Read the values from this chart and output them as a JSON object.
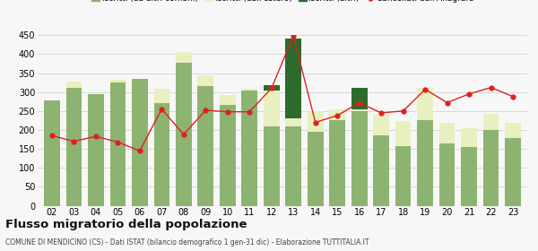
{
  "years": [
    "02",
    "03",
    "04",
    "05",
    "06",
    "07",
    "08",
    "09",
    "10",
    "11",
    "12",
    "13",
    "14",
    "15",
    "16",
    "17",
    "18",
    "19",
    "20",
    "21",
    "22",
    "23"
  ],
  "iscritti_comuni": [
    278,
    310,
    295,
    325,
    335,
    270,
    378,
    315,
    265,
    303,
    210,
    210,
    195,
    225,
    250,
    185,
    158,
    225,
    165,
    155,
    200,
    178
  ],
  "iscritti_estero": [
    0,
    18,
    0,
    8,
    0,
    38,
    28,
    28,
    28,
    5,
    95,
    20,
    55,
    30,
    5,
    55,
    65,
    85,
    55,
    50,
    42,
    40
  ],
  "iscritti_altri": [
    0,
    0,
    0,
    0,
    0,
    0,
    0,
    0,
    0,
    0,
    14,
    210,
    0,
    0,
    55,
    0,
    0,
    0,
    0,
    0,
    0,
    0
  ],
  "cancellati": [
    185,
    170,
    183,
    168,
    145,
    255,
    188,
    252,
    248,
    248,
    310,
    448,
    220,
    238,
    272,
    245,
    250,
    307,
    272,
    295,
    312,
    288
  ],
  "color_comuni": "#8db370",
  "color_estero": "#e8f0c0",
  "color_altri": "#2d6b2d",
  "color_cancellati": "#e02020",
  "ylim": [
    0,
    450
  ],
  "yticks": [
    0,
    50,
    100,
    150,
    200,
    250,
    300,
    350,
    400,
    450
  ],
  "title": "Flusso migratorio della popolazione",
  "subtitle": "COMUNE DI MENDICINO (CS) - Dati ISTAT (bilancio demografico 1 gen-31 dic) - Elaborazione TUTTITALIA.IT",
  "background_color": "#f7f7f7",
  "grid_color": "#d8d8d8"
}
